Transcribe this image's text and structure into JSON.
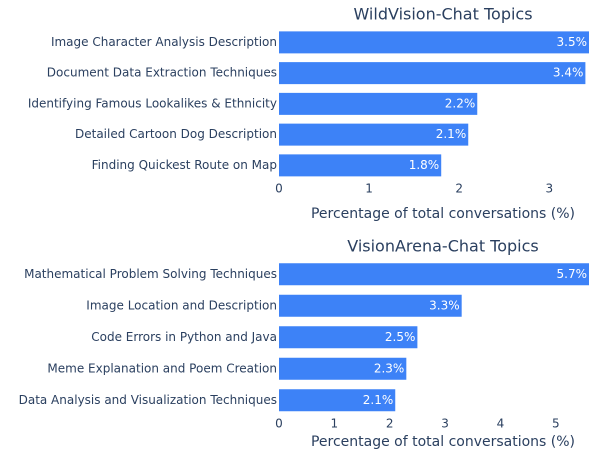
{
  "chart_data": [
    {
      "type": "bar",
      "orientation": "horizontal",
      "title": "WildVision-Chat Topics",
      "categories": [
        "Image Character Analysis Description",
        "Document Data Extraction Techniques",
        "Identifying Famous Lookalikes & Ethnicity",
        "Detailed Cartoon Dog Description",
        "Finding Quickest Route on Map"
      ],
      "values": [
        3.5,
        3.4,
        2.2,
        2.1,
        1.8
      ],
      "value_labels": [
        "3.5%",
        "3.4%",
        "2.2%",
        "2.1%",
        "1.8%"
      ],
      "color": "#3d82f7",
      "xlabel": "Percentage of total conversations (%)",
      "xlim": [
        0,
        3.44
      ],
      "xticks": [
        0,
        1,
        2,
        3
      ]
    },
    {
      "type": "bar",
      "orientation": "horizontal",
      "title": "VisionArena-Chat Topics",
      "categories": [
        "Mathematical Problem Solving Techniques",
        "Image Location and Description",
        "Code Errors in Python and Java",
        "Meme Explanation and Poem Creation",
        "Data Analysis and Visualization Techniques"
      ],
      "values": [
        5.7,
        3.3,
        2.5,
        2.3,
        2.1
      ],
      "value_labels": [
        "5.7%",
        "3.3%",
        "2.5%",
        "2.3%",
        "2.1%"
      ],
      "color": "#3d82f7",
      "xlabel": "Percentage of total conversations (%)",
      "xlim": [
        0,
        5.6
      ],
      "xticks": [
        0,
        1,
        2,
        3,
        4,
        5
      ]
    }
  ]
}
